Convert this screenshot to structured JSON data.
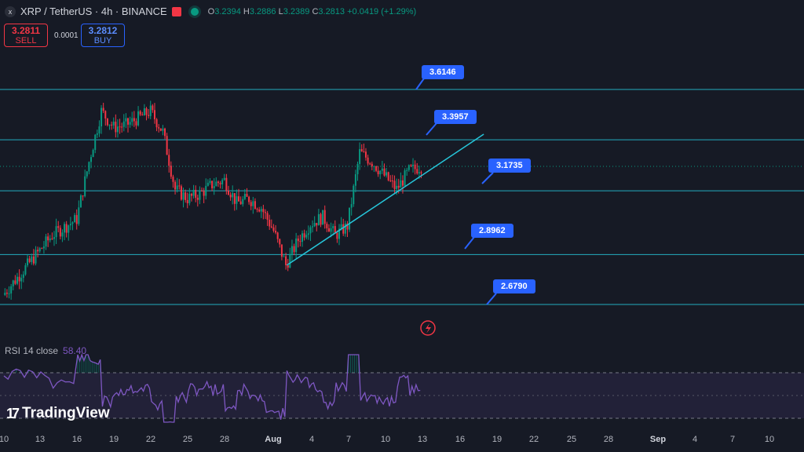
{
  "header": {
    "symbol_icon": "x",
    "title": "XRP / TetherUS · 4h · BINANCE",
    "ohlc": {
      "o_label": "O",
      "o": "3.2394",
      "h_label": "H",
      "h": "3.2886",
      "l_label": "L",
      "l": "3.2389",
      "c_label": "C",
      "c": "3.2813",
      "change": "+0.0419 (+1.29%)"
    }
  },
  "trade": {
    "sell_price": "3.2811",
    "sell_label": "SELL",
    "spread": "0.0001",
    "buy_price": "3.2812",
    "buy_label": "BUY"
  },
  "colors": {
    "up": "#089981",
    "down": "#f23645",
    "level": "#26c6da",
    "accent": "#2962ff",
    "rsi": "#7e57c2",
    "bg": "#161a25"
  },
  "price_levels": [
    "3.6146",
    "3.3957",
    "3.1735",
    "2.8962",
    "2.6790"
  ],
  "rsi": {
    "label": "RSI 14 close",
    "value": "58.40"
  },
  "logo": {
    "text": "TradingView"
  },
  "x_axis": [
    "10",
    "13",
    "16",
    "19",
    "22",
    "25",
    "28",
    "Aug",
    "4",
    "7",
    "10",
    "13",
    "16",
    "19",
    "22",
    "25",
    "28",
    "Sep",
    "4",
    "7",
    "10"
  ],
  "icons": {
    "flash": "lightning-icon"
  },
  "chart_data": {
    "type": "candlestick",
    "symbol": "XRP / TetherUS",
    "interval": "4h",
    "ylim": [
      2.6,
      3.7
    ],
    "horizontal_levels": [
      3.6146,
      3.3957,
      3.1735,
      2.8962,
      2.679
    ],
    "trendline": {
      "from": {
        "date": "Aug 2",
        "price": 2.85
      },
      "to": {
        "date": "Aug 18",
        "price": 3.42
      }
    },
    "close_path": [
      {
        "date": "Jul 10",
        "close": 2.72
      },
      {
        "date": "Jul 12",
        "close": 2.85
      },
      {
        "date": "Jul 14",
        "close": 2.98
      },
      {
        "date": "Jul 16",
        "close": 3.05
      },
      {
        "date": "Jul 17",
        "close": 3.3
      },
      {
        "date": "Jul 18",
        "close": 3.52
      },
      {
        "date": "Jul 19",
        "close": 3.45
      },
      {
        "date": "Jul 20",
        "close": 3.46
      },
      {
        "date": "Jul 21",
        "close": 3.49
      },
      {
        "date": "Jul 22",
        "close": 3.52
      },
      {
        "date": "Jul 23",
        "close": 3.43
      },
      {
        "date": "Jul 24",
        "close": 3.18
      },
      {
        "date": "Jul 25",
        "close": 3.14
      },
      {
        "date": "Jul 26",
        "close": 3.16
      },
      {
        "date": "Jul 27",
        "close": 3.2
      },
      {
        "date": "Jul 28",
        "close": 3.22
      },
      {
        "date": "Jul 29",
        "close": 3.12
      },
      {
        "date": "Jul 30",
        "close": 3.14
      },
      {
        "date": "Jul 31",
        "close": 3.1
      },
      {
        "date": "Aug 1",
        "close": 3.0
      },
      {
        "date": "Aug 2",
        "close": 2.85
      },
      {
        "date": "Aug 3",
        "close": 2.96
      },
      {
        "date": "Aug 4",
        "close": 3.03
      },
      {
        "date": "Aug 5",
        "close": 3.06
      },
      {
        "date": "Aug 6",
        "close": 2.98
      },
      {
        "date": "Aug 7",
        "close": 3.02
      },
      {
        "date": "Aug 8",
        "close": 3.34
      },
      {
        "date": "Aug 9",
        "close": 3.3
      },
      {
        "date": "Aug 10",
        "close": 3.24
      },
      {
        "date": "Aug 11",
        "close": 3.18
      },
      {
        "date": "Aug 12",
        "close": 3.26
      },
      {
        "date": "Aug 13",
        "close": 3.28
      }
    ]
  }
}
